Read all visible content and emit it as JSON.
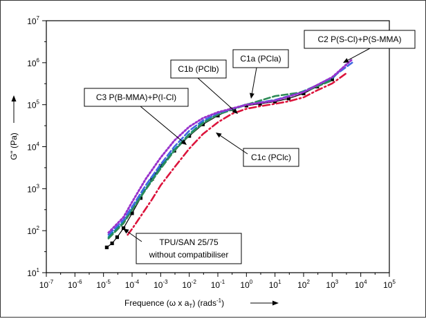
{
  "chart_data": {
    "type": "line",
    "x_scale": "log",
    "y_scale": "log",
    "xlim": [
      1e-07,
      100000.0
    ],
    "ylim": [
      10,
      10000000.0
    ],
    "grid": false,
    "x_tick_labels": [
      {
        "base": "10",
        "exp": "-7",
        "value": 1e-07
      },
      {
        "base": "10",
        "exp": "-6",
        "value": 1e-06
      },
      {
        "base": "10",
        "exp": "-5",
        "value": 1e-05
      },
      {
        "base": "10",
        "exp": "-4",
        "value": 0.0001
      },
      {
        "base": "10",
        "exp": "-3",
        "value": 0.001
      },
      {
        "base": "10",
        "exp": "-2",
        "value": 0.01
      },
      {
        "base": "10",
        "exp": "-1",
        "value": 0.1
      },
      {
        "base": "10",
        "exp": "0",
        "value": 1
      },
      {
        "base": "10",
        "exp": "1",
        "value": 10.0
      },
      {
        "base": "10",
        "exp": "2",
        "value": 100.0
      },
      {
        "base": "10",
        "exp": "3",
        "value": 1000.0
      },
      {
        "base": "10",
        "exp": "4",
        "value": 10000.0
      },
      {
        "base": "10",
        "exp": "5",
        "value": 100000.0
      }
    ],
    "y_tick_labels": [
      {
        "base": "10",
        "exp": "1",
        "value": 10.0
      },
      {
        "base": "10",
        "exp": "2",
        "value": 100.0
      },
      {
        "base": "10",
        "exp": "3",
        "value": 1000.0
      },
      {
        "base": "10",
        "exp": "4",
        "value": 10000.0
      },
      {
        "base": "10",
        "exp": "5",
        "value": 100000.0
      },
      {
        "base": "10",
        "exp": "6",
        "value": 1000000.0
      },
      {
        "base": "10",
        "exp": "7",
        "value": 10000000.0
      }
    ],
    "xlabel": {
      "pre": "Frequence (ω x a",
      "sub": "T",
      "mid": ") (rads",
      "sup": "-1",
      "post": ")"
    },
    "ylabel": "G\" (Pa)",
    "series": [
      {
        "key": "tpu_san",
        "color": "#000000",
        "style": "square-markers",
        "values": [
          [
            1.3e-05,
            40
          ],
          [
            2e-05,
            50
          ],
          [
            3e-05,
            70
          ],
          [
            5e-05,
            115
          ],
          [
            0.0001,
            260
          ],
          [
            0.0002,
            600
          ],
          [
            0.0005,
            1700
          ],
          [
            0.001,
            3500
          ],
          [
            0.003,
            8000
          ],
          [
            0.01,
            18000
          ],
          [
            0.03,
            34000
          ],
          [
            0.1,
            55000
          ],
          [
            0.3,
            78000
          ],
          [
            1,
            95000
          ],
          [
            3,
            105000
          ],
          [
            10,
            118000
          ],
          [
            30,
            140000
          ],
          [
            100,
            185000
          ],
          [
            300,
            270000
          ],
          [
            1000,
            400000
          ]
        ]
      },
      {
        "key": "c1a",
        "color": "#008b8b",
        "style": "dash",
        "values": [
          [
            1.5e-05,
            70
          ],
          [
            5e-05,
            160
          ],
          [
            0.0001,
            330
          ],
          [
            0.0003,
            1000
          ],
          [
            0.001,
            3200
          ],
          [
            0.003,
            8500
          ],
          [
            0.01,
            20000
          ],
          [
            0.03,
            38000
          ],
          [
            0.1,
            60000
          ],
          [
            1,
            102000
          ],
          [
            10,
            125000
          ],
          [
            100,
            210000
          ],
          [
            1000,
            420000
          ],
          [
            3000,
            900000
          ]
        ]
      },
      {
        "key": "c1b",
        "color": "#2e8b57",
        "style": "dash",
        "values": [
          [
            1.5e-05,
            65
          ],
          [
            5e-05,
            150
          ],
          [
            0.0001,
            310
          ],
          [
            0.0003,
            950
          ],
          [
            0.001,
            3000
          ],
          [
            0.003,
            8000
          ],
          [
            0.01,
            19000
          ],
          [
            0.03,
            36000
          ],
          [
            0.1,
            58000
          ],
          [
            1,
            100000
          ],
          [
            10,
            160000
          ],
          [
            100,
            200000
          ],
          [
            1000,
            380000
          ]
        ]
      },
      {
        "key": "c1c",
        "color": "#dc143c",
        "style": "dash-dot",
        "values": [
          [
            7e-05,
            80
          ],
          [
            0.0001,
            110
          ],
          [
            0.0002,
            220
          ],
          [
            0.0005,
            560
          ],
          [
            0.001,
            1200
          ],
          [
            0.003,
            3200
          ],
          [
            0.01,
            9000
          ],
          [
            0.03,
            20000
          ],
          [
            0.1,
            38000
          ],
          [
            0.3,
            60000
          ],
          [
            1,
            80000
          ],
          [
            3,
            92000
          ],
          [
            10,
            105000
          ],
          [
            30,
            120000
          ],
          [
            100,
            150000
          ],
          [
            300,
            220000
          ],
          [
            1000,
            320000
          ],
          [
            3000,
            550000
          ]
        ]
      },
      {
        "key": "c2",
        "color": "#4169e1",
        "style": "dash",
        "values": [
          [
            1.5e-05,
            80
          ],
          [
            5e-05,
            180
          ],
          [
            0.0001,
            370
          ],
          [
            0.0003,
            1200
          ],
          [
            0.001,
            3800
          ],
          [
            0.003,
            10000
          ],
          [
            0.01,
            24000
          ],
          [
            0.03,
            42000
          ],
          [
            0.1,
            63000
          ],
          [
            1,
            100000
          ],
          [
            10,
            130000
          ],
          [
            100,
            200000
          ],
          [
            1000,
            450000
          ],
          [
            5000,
            1000000
          ]
        ]
      },
      {
        "key": "c3",
        "color": "#9932cc",
        "style": "dot",
        "values": [
          [
            1.5e-05,
            90
          ],
          [
            5e-05,
            210
          ],
          [
            0.0001,
            480
          ],
          [
            0.0003,
            1700
          ],
          [
            0.001,
            5500
          ],
          [
            0.003,
            14000
          ],
          [
            0.01,
            30000
          ],
          [
            0.03,
            48000
          ],
          [
            0.1,
            66000
          ],
          [
            1,
            100000
          ],
          [
            10,
            125000
          ],
          [
            100,
            200000
          ],
          [
            1000,
            450000
          ],
          [
            5000,
            1200000
          ]
        ]
      }
    ],
    "annotations": [
      {
        "key": "c2",
        "text": "C2 P(S-Cl)+P(S-MMA)",
        "target": [
          3000,
          800000
        ]
      },
      {
        "key": "c1a",
        "text": "C1a (PCla)",
        "target": [
          150,
          200000
        ]
      },
      {
        "key": "c1b",
        "text": "C1b (PClb)",
        "target": [
          0.5,
          70000
        ]
      },
      {
        "key": "c3",
        "text": "C3 P(B-MMA)+P(I-Cl)",
        "target": [
          0.003,
          15000
        ]
      },
      {
        "key": "c1c",
        "text": "C1c (PClc)",
        "target": [
          0.1,
          30000
        ]
      },
      {
        "key": "tpu",
        "lines": [
          "TPU/SAN 25/75",
          "without compatibiliser"
        ],
        "target": [
          5e-05,
          70
        ]
      }
    ]
  }
}
